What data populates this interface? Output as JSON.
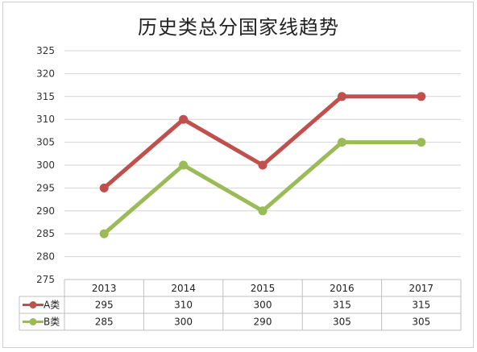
{
  "chart_data": {
    "type": "line",
    "title": "历史类总分国家线趋势",
    "categories": [
      "2013",
      "2014",
      "2015",
      "2016",
      "2017"
    ],
    "series": [
      {
        "name": "A类",
        "values": [
          295,
          310,
          300,
          315,
          315
        ],
        "color": "#c0504d"
      },
      {
        "name": "B类",
        "values": [
          285,
          300,
          290,
          305,
          305
        ],
        "color": "#9bbb59"
      }
    ],
    "ylim": [
      275,
      325
    ],
    "yticks": [
      275,
      280,
      285,
      290,
      295,
      300,
      305,
      310,
      315,
      320,
      325
    ],
    "grid": true,
    "legend": "data-table-bottom"
  }
}
